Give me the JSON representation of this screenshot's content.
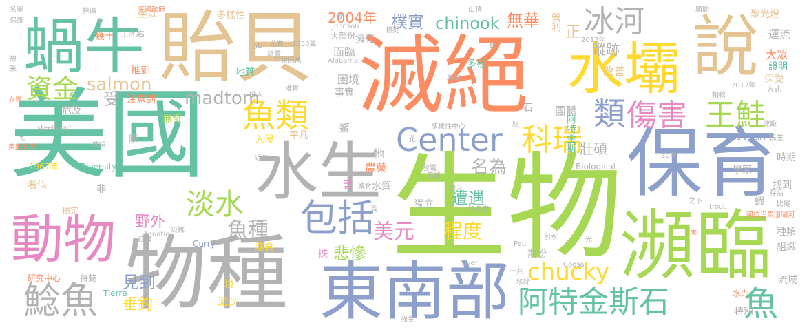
{
  "words": {
    "w001": "美國",
    "w002": "生物",
    "w003": "滅絕",
    "w004": "貽貝",
    "w005": "保育",
    "w006": "物種",
    "w007": "東南部",
    "w008": "瀕臨",
    "w009": "水壩",
    "w010": "說",
    "w011": "水生",
    "w012": "蝸牛",
    "w013": "動物",
    "w014": "Center",
    "w015": "包括",
    "w016": "阿特金斯石",
    "w017": "魚",
    "w018": "傷害",
    "w019": "王鮭",
    "w020": "類",
    "w021": "魚類",
    "w022": "冰河",
    "w023": "科瑞",
    "w024": "淡水",
    "w025": "鯰魚",
    "w026": "資金",
    "w027": "chucky",
    "w028": "魚種",
    "w029": "美元",
    "w030": "程度",
    "w031": "悲慘",
    "w032": "名為",
    "w033": "遭遇",
    "w034": "野外",
    "w035": "見到",
    "w036": "垂釣",
    "w037": "chinook",
    "w038": "樸實",
    "w039": "2004年",
    "w040": "無華",
    "w041": "蹤跡",
    "w042": "salmon",
    "w043": "madtom",
    "w044": "壯碩",
    "w045": "受",
    "w046": "多樣性",
    "w047": "正",
    "w048": "營利",
    "w049": "聚光燈",
    "w050": "運流",
    "w051": "大眾",
    "w052": "深受",
    "w053": "證明",
    "w054": "改善",
    "w055": "困境",
    "w056": "面臨",
    "w057": "事實",
    "w058": "擁有",
    "w059": "多樣",
    "w060": "大部份",
    "w061": "注意到",
    "w062": "推到",
    "w063": "地質",
    "w064": "幾十",
    "w065": "坐以",
    "w066": "危及",
    "w067": "無奇",
    "w068": "平凡",
    "w069": "入侵",
    "w070": "牠",
    "w071": "鰲",
    "w072": "農藥",
    "w073": "Diversity",
    "w074": "1967年",
    "w075": "看似",
    "w076": "非",
    "w077": "兩",
    "w078": "害",
    "w079": "水質",
    "w080": "獨立",
    "w081": "濾食",
    "w082": "研究中心",
    "w083": "待斃",
    "w084": "Tierra",
    "w085": "泥沙",
    "w086": "境",
    "w087": "挾",
    "w088": "期盼",
    "w089": "Curry",
    "w090": "特別",
    "w091": "水力",
    "w092": "流域",
    "w093": "組織",
    "w094": "種類",
    "w095": "蝦",
    "w096": "找到",
    "w097": "學家",
    "w098": "時期",
    "w099": "團體",
    "w100": "阿特金斯",
    "w101": "石",
    "w102": "Biological",
    "w103": "Biodiversity",
    "w104": "穩定",
    "w105": "名單",
    "w106": "保護",
    "w107": "想",
    "w108": "采",
    "w109": "五億",
    "w110": "七",
    "w111": "美國政府",
    "w112": "並論",
    "w113": "steelhead",
    "w114": "投入",
    "w115": "確實",
    "w116": "阿拉巴馬",
    "w117": "花費",
    "w118": "1350萬",
    "w119": "計畫",
    "w120": "Johnson",
    "w121": "Alabama",
    "w122": "相提",
    "w123": "山頂",
    "w124": "2013年",
    "w125": "2012年",
    "w126": "相較",
    "w127": "方式",
    "w128": "建設",
    "w129": "民生",
    "w130": "30多",
    "w131": "trout",
    "w132": "阿拉巴馬珊瑚河",
    "w133": "比擬",
    "w134": "之下",
    "w135": "存活",
    "w136": "Paul",
    "w137": "River",
    "w138": "Coosa",
    "w139": "一共",
    "w140": "引水",
    "w141": "移除",
    "w142": "強生",
    "w143": "光",
    "w144": "未",
    "w145": "主持人",
    "w146": "高",
    "w147": "發電",
    "w148": "威脅",
    "w149": "生態",
    "w150": "列入",
    "w151": "知名度",
    "w152": "多樣性中心",
    "w153": "Aquatic",
    "w154": "災難",
    "w155": "紅鱒",
    "w156": "探礦",
    "w157": "牟",
    "w158": "D",
    "w159": "D",
    "w160": "賤",
    "w161": "數",
    "w162": "現有",
    "w163": "近年",
    "w164": "花",
    "w165": "分",
    "w166": "貢",
    "w167": "座",
    "w168": "膳問",
    "w169": "美國政府"
  },
  "palette": {
    "teal": "#66c2a5",
    "orange": "#fc8d62",
    "blue": "#8da0cb",
    "pink": "#e78ac3",
    "green": "#a6d854",
    "yellow": "#ffd92f",
    "tan": "#e5c494",
    "gray": "#b3b3b3",
    "background": "#ffffff"
  }
}
